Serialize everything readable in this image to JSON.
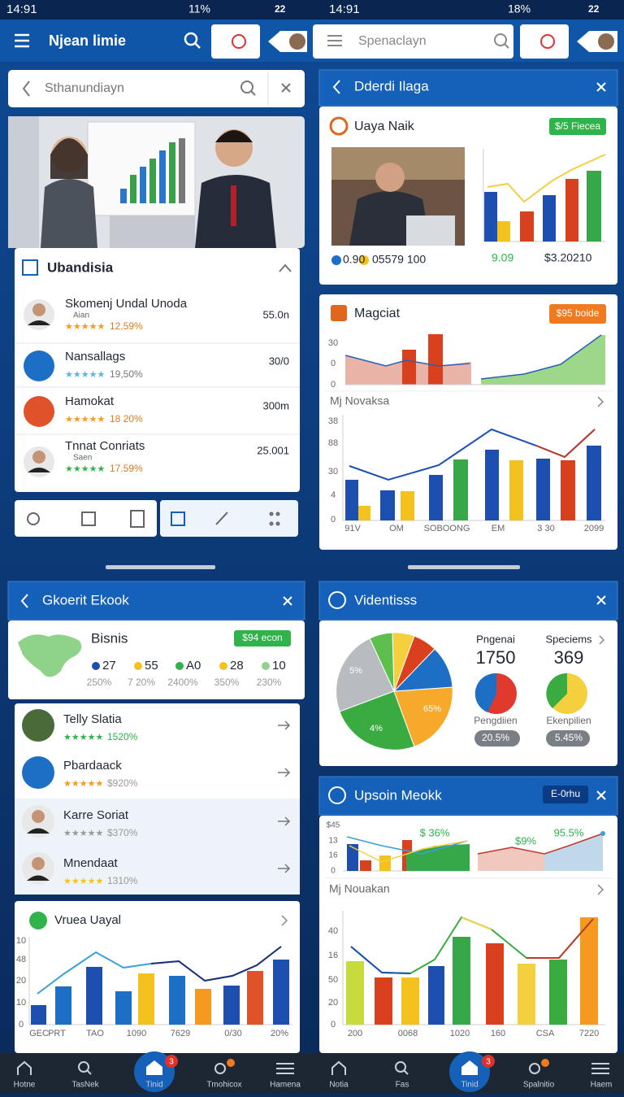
{
  "status_bar": {
    "left_time": "14:91",
    "left_battery": "11%",
    "left_level": "22",
    "right_time": "14:91",
    "right_battery": "18%",
    "right_level": "22"
  },
  "header": {
    "title": "Njean limie",
    "search_placeholder": "Spenaclayn"
  },
  "left_top": {
    "search_placeholder": "Sthanundiayn",
    "section_title": "Ubandisia",
    "items": [
      {
        "name": "Skomenj Undal Unoda",
        "sub": "Aian",
        "stars": "★★★★★",
        "rating": "12,59%",
        "value": "55.0n"
      },
      {
        "name": "Nansallags",
        "stars": "★★★★★",
        "rating": "19,50%",
        "value": "30/0"
      },
      {
        "name": "Hamokat",
        "stars": "★★★★★",
        "rating": "18 20%",
        "value": "300m"
      },
      {
        "name": "Tnnat Conriats",
        "sub": "Saen",
        "stars": "★★★★★",
        "rating": "17.59%",
        "value": "25.001"
      }
    ]
  },
  "right_top": {
    "header": "Dderdi Ilaga",
    "card1": {
      "title": "Uaya Naik",
      "badge": "$/5 Fiecea",
      "stat1": "0.90",
      "stat2": "05579 100",
      "value1": "9.09",
      "value2": "$3.20210"
    },
    "card2": {
      "title": "Magciat",
      "badge": "$95 boide",
      "mini_y_labels": [
        "30",
        "0",
        "0"
      ],
      "subtitle": "Mj Novaksa",
      "y_labels": [
        "38",
        "88",
        "30",
        "4",
        "0"
      ],
      "x_labels": [
        "91V",
        "OM",
        "SOBOONG",
        "EM",
        "3 30",
        "2099"
      ]
    }
  },
  "left_bottom": {
    "header": "Gkoerit Ekook",
    "card_title": "Bisnis",
    "badge": "$94 econ",
    "stats": [
      {
        "value": "27",
        "pct": "250%"
      },
      {
        "value": "55",
        "pct": "7 20%"
      },
      {
        "value": "A0",
        "pct": "2400%"
      },
      {
        "value": "28",
        "pct": "350%"
      },
      {
        "value": "10",
        "pct": "230%"
      }
    ],
    "people": [
      {
        "name": "Telly Slatia",
        "stars": "★★★★★",
        "rating": "1520%"
      },
      {
        "name": "Pbardaack",
        "stars": "★★★★★",
        "rating": "$920%"
      },
      {
        "name": "Karre Soriat",
        "stars": "★★★★★",
        "rating": "$370%"
      },
      {
        "name": "Mnendaat",
        "stars": "★★★★★",
        "rating": "1310%"
      }
    ],
    "chart_title": "Vruea Uayal",
    "y_labels": [
      "10",
      "48",
      "20",
      "10",
      "0"
    ],
    "x_labels": [
      "GEC",
      "PRT",
      "TAO",
      "1090",
      "7629",
      "0/30",
      "20%"
    ]
  },
  "right_bottom": {
    "header": "Videntisss",
    "pie_labels": [
      "5%",
      "4%",
      "65%"
    ],
    "stat1": {
      "label": "Pngenai",
      "value": "1750",
      "foot": "Pengdiien",
      "pct": "20.5%"
    },
    "stat2": {
      "label": "Speciems",
      "value": "369",
      "foot": "Ekenpilien",
      "pct": "5.45%"
    },
    "header2": "Upsoin Meokk",
    "badge": "E-0rhu",
    "mini_y_labels": [
      "$45",
      "13",
      "16",
      "0"
    ],
    "annotations": [
      "$ 36%",
      "$9%",
      "95.5%"
    ],
    "subtitle": "Mj Nouakan",
    "y_labels": [
      "40",
      "16",
      "50",
      "20",
      "0"
    ],
    "x_labels": [
      "200",
      "0068",
      "1020",
      "160",
      "CSA",
      "7220"
    ]
  },
  "nav_left": {
    "labels": [
      "Hotne",
      "TasNek",
      "Tinid",
      "Tmohicox",
      "Hamena"
    ],
    "badge": "3"
  },
  "nav_right": {
    "labels": [
      "Notia",
      "Fas",
      "Tinid",
      "Spalnitio",
      "Haem"
    ],
    "badge": "3"
  }
}
